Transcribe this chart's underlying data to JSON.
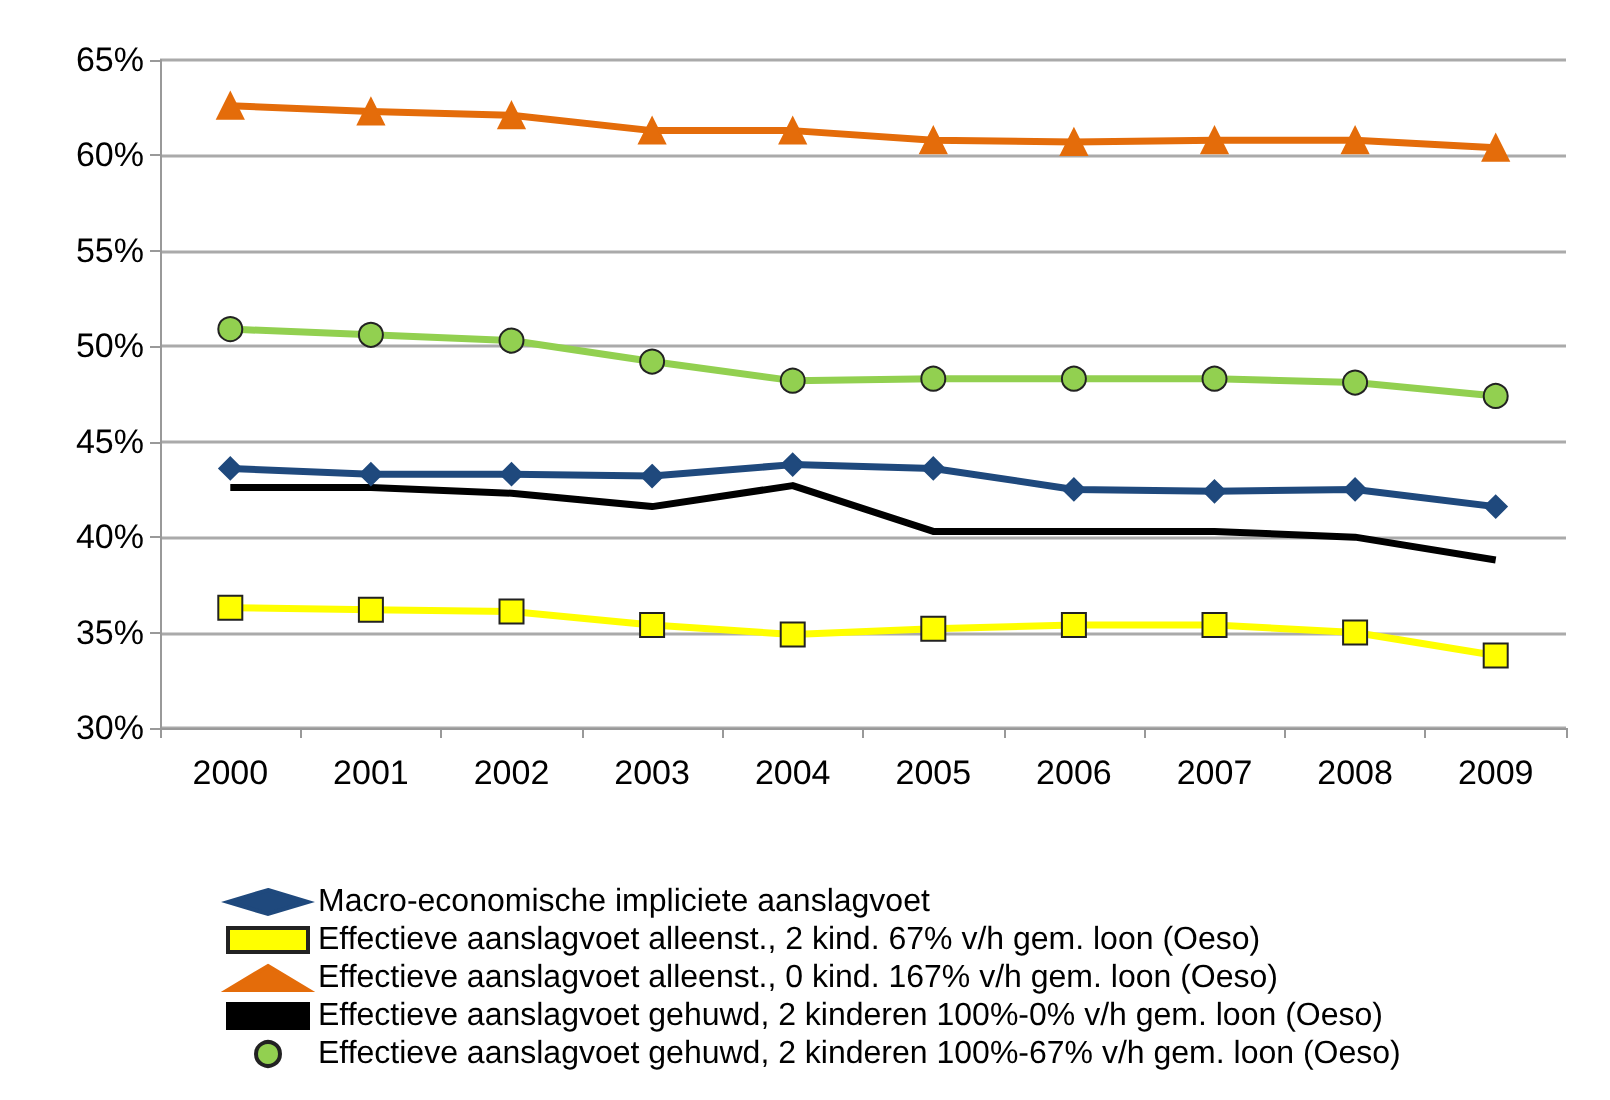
{
  "chart_data": {
    "type": "line",
    "categories": [
      "2000",
      "2001",
      "2002",
      "2003",
      "2004",
      "2005",
      "2006",
      "2007",
      "2008",
      "2009"
    ],
    "ylim": [
      30,
      65
    ],
    "yticks": [
      {
        "value": 30,
        "label": "30%"
      },
      {
        "value": 35,
        "label": "35%"
      },
      {
        "value": 40,
        "label": "40%"
      },
      {
        "value": 45,
        "label": "45%"
      },
      {
        "value": 50,
        "label": "50%"
      },
      {
        "value": 55,
        "label": "55%"
      },
      {
        "value": 60,
        "label": "60%"
      },
      {
        "value": 65,
        "label": "65%"
      }
    ],
    "grid": "y",
    "legend": "bottom",
    "line_style": "solid",
    "series": [
      {
        "name": "Macro-economische impliciete aanslagvoet",
        "color": "#1f497d",
        "marker": "diamond",
        "values": [
          43.6,
          43.3,
          43.3,
          43.2,
          43.8,
          43.6,
          42.5,
          42.4,
          42.5,
          41.6
        ]
      },
      {
        "name": "Effectieve aanslagvoet alleenst., 2 kind. 67% v/h gem. loon (Oeso)",
        "color": "#ffff00",
        "marker": "square",
        "values": [
          36.3,
          36.2,
          36.1,
          35.4,
          34.9,
          35.2,
          35.4,
          35.4,
          35.0,
          33.8
        ]
      },
      {
        "name": "Effectieve aanslagvoet alleenst., 0 kind. 167% v/h gem. loon (Oeso)",
        "color": "#e46c0a",
        "marker": "triangle",
        "values": [
          62.6,
          62.3,
          62.1,
          61.3,
          61.3,
          60.8,
          60.7,
          60.8,
          60.8,
          60.4
        ]
      },
      {
        "name": "Effectieve aanslagvoet gehuwd, 2 kinderen 100%-0% v/h gem. loon (Oeso)",
        "color": "#000000",
        "marker": "none",
        "values": [
          42.6,
          42.6,
          42.3,
          41.6,
          42.7,
          40.3,
          40.3,
          40.3,
          40.0,
          38.8
        ]
      },
      {
        "name": "Effectieve aanslagvoet gehuwd, 2 kinderen 100%-67% v/h gem. loon (Oeso)",
        "color": "#92d050",
        "marker": "circle",
        "values": [
          50.9,
          50.6,
          50.3,
          49.2,
          48.2,
          48.3,
          48.3,
          48.3,
          48.1,
          47.4
        ]
      }
    ]
  }
}
